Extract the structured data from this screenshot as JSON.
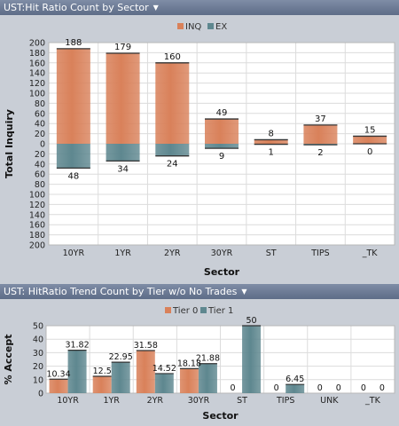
{
  "colors": {
    "inq": "#d9815a",
    "ex": "#5e878f",
    "tier0": "#d9815a",
    "tier1": "#5e878f"
  },
  "panels": [
    {
      "header": "UST:Hit Ratio Count by Sector"
    },
    {
      "header": "UST: HitRatio Trend Count by Tier w/o No Trades"
    }
  ],
  "chart_data": [
    {
      "type": "bar",
      "title": "UST:Hit Ratio Count by Sector",
      "xlabel": "Sector",
      "ylabel": "Total Inquiry",
      "categories": [
        "10YR",
        "1YR",
        "2YR",
        "30YR",
        "ST",
        "TIPS",
        "_TK"
      ],
      "series": [
        {
          "name": "INQ",
          "values": [
            188,
            179,
            160,
            49,
            8,
            37,
            15
          ]
        },
        {
          "name": "EX",
          "values": [
            48,
            34,
            24,
            9,
            1,
            2,
            0
          ]
        }
      ],
      "yticks": [
        "200",
        "180",
        "160",
        "140",
        "120",
        "100",
        "80",
        "60",
        "40",
        "20",
        "0",
        "20",
        "40",
        "60",
        "80",
        "100",
        "120",
        "140",
        "160",
        "180",
        "200"
      ],
      "ylim": [
        -200,
        200
      ],
      "legend": "top-center",
      "grid": true
    },
    {
      "type": "bar",
      "title": "UST: HitRatio Trend Count by Tier w/o No Trades",
      "xlabel": "Sector",
      "ylabel": "% Accept",
      "categories": [
        "10YR",
        "1YR",
        "2YR",
        "30YR",
        "ST",
        "TIPS",
        "UNK",
        "_TK"
      ],
      "series": [
        {
          "name": "Tier 0",
          "values": [
            10.34,
            12.5,
            31.58,
            18.18,
            0,
            0,
            0,
            0
          ]
        },
        {
          "name": "Tier 1",
          "values": [
            31.82,
            22.95,
            14.52,
            21.88,
            50,
            6.45,
            0,
            0
          ]
        }
      ],
      "value_labels": [
        [
          "10.34",
          "12.5",
          "31.58",
          "18.18",
          "0",
          "0",
          "0",
          "0"
        ],
        [
          "31.82",
          "22.95",
          "14.52",
          "21.88",
          "50",
          "6.45",
          "0",
          "0"
        ]
      ],
      "yticks": [
        "0",
        "5",
        "10",
        "15",
        "20",
        "25",
        "30",
        "35",
        "40",
        "45",
        "50"
      ],
      "ylim": [
        0,
        50
      ],
      "legend": "top-center",
      "grid": true
    }
  ]
}
